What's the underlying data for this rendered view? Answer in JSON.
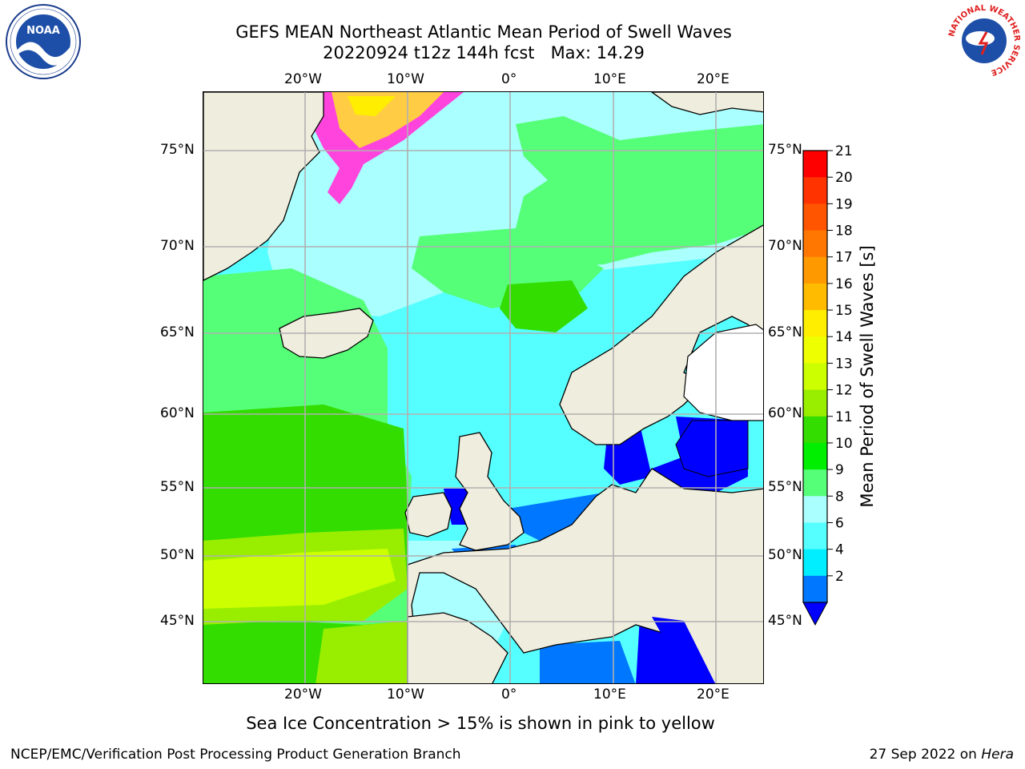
{
  "header": {
    "title_line1": "GEFS MEAN Northeast Atlantic Mean Period of Swell Waves",
    "title_line2": "20220924 t12z 144h fcst   Max: 14.29"
  },
  "logos": {
    "left": "NOAA",
    "left_ring_text": "NATIONAL OCEANIC AND ATMOSPHERIC ADMINISTRATION · U.S. DEPARTMENT OF COMMERCE",
    "right_ring_text": "NATIONAL WEATHER SERVICE"
  },
  "map": {
    "lon_labels": [
      "20°W",
      "10°W",
      "0°",
      "10°E",
      "20°E"
    ],
    "lat_labels": [
      "75°N",
      "70°N",
      "65°N",
      "60°N",
      "55°N",
      "50°N",
      "45°N"
    ]
  },
  "colorbar": {
    "label": "Mean Period of Swell Waves [s]",
    "ticks": [
      "21",
      "20",
      "19",
      "18",
      "17",
      "16",
      "15",
      "14",
      "13",
      "12",
      "11",
      "10",
      "9",
      "8",
      "6",
      "4",
      "2"
    ],
    "colors": [
      "#ff0000",
      "#ff3300",
      "#ff5500",
      "#ff7700",
      "#ff9900",
      "#ffbb00",
      "#ffee00",
      "#eeff00",
      "#ccff00",
      "#99ee00",
      "#33dd00",
      "#00ee00",
      "#55ff77",
      "#aaffff",
      "#55ffff",
      "#00eeff",
      "#0077ff"
    ],
    "extend_color": "#0000ff"
  },
  "caption": "Sea Ice Concentration > 15% is shown in pink to yellow",
  "footer": {
    "left": "NCEP/EMC/Verification Post Processing Product Generation Branch",
    "right_date": "27 Sep 2022 on ",
    "right_host": "Hera"
  },
  "colors": {
    "land": "#efeddd",
    "grid": "#b0b0b0",
    "sea_ice_pink": "#ff44dd",
    "sea_ice_yellow": "#ffcc44"
  }
}
